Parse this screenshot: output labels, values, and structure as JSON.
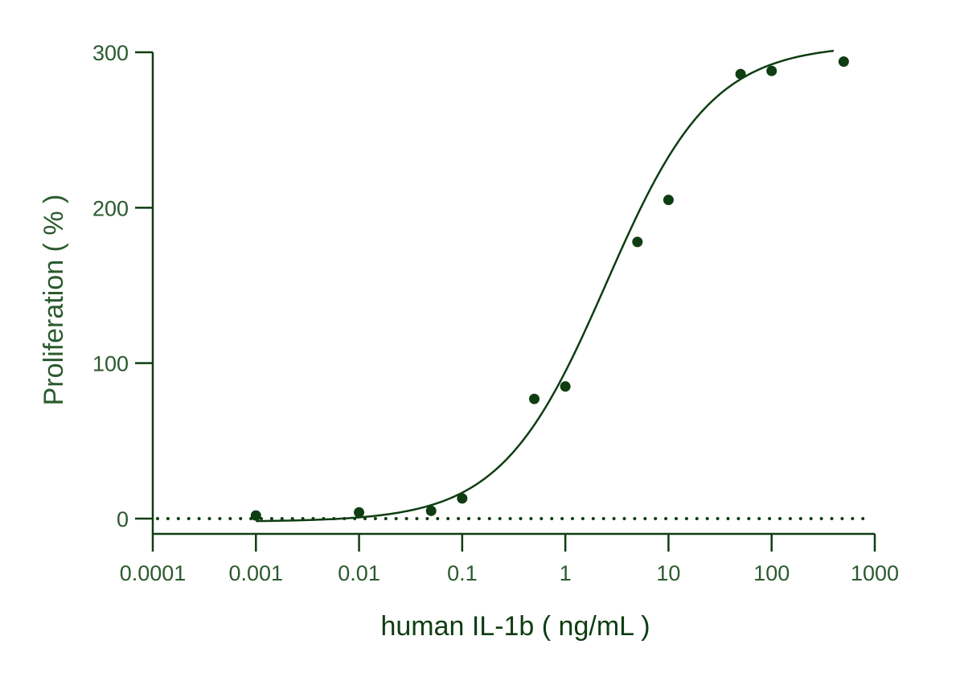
{
  "chart_data": {
    "type": "scatter",
    "xscale": "log",
    "xlabel": "human IL-1b ( ng/mL )",
    "ylabel": "Proliferation ( % )",
    "xlim": [
      0.0001,
      1000
    ],
    "ylim": [
      -10,
      300
    ],
    "xticks": [
      0.0001,
      0.001,
      0.01,
      0.1,
      1,
      10,
      100,
      1000
    ],
    "xtick_labels": [
      "0.0001",
      "0.001",
      "0.01",
      "0.1",
      "1",
      "10",
      "100",
      "1000"
    ],
    "yticks": [
      0,
      100,
      200,
      300
    ],
    "ytick_labels": [
      "0",
      "100",
      "200",
      "300"
    ],
    "grid": false,
    "series": [
      {
        "points": [
          {
            "x": 0.001,
            "y": 2
          },
          {
            "x": 0.01,
            "y": 4
          },
          {
            "x": 0.05,
            "y": 5
          },
          {
            "x": 0.1,
            "y": 13
          },
          {
            "x": 0.5,
            "y": 77
          },
          {
            "x": 1,
            "y": 85
          },
          {
            "x": 5,
            "y": 178
          },
          {
            "x": 10,
            "y": 205
          },
          {
            "x": 50,
            "y": 286
          },
          {
            "x": 100,
            "y": 288
          },
          {
            "x": 500,
            "y": 294
          }
        ]
      }
    ],
    "fit_curve": {
      "type": "four-parameter logistic",
      "bottom": -2,
      "top": 305,
      "ec50": 2.5,
      "hill": 0.85,
      "x_range": [
        0.001,
        400
      ]
    },
    "reference_line": {
      "y": 0,
      "style": "dotted"
    },
    "colors": {
      "ink": "#0f3d12",
      "label": "#2b5a2e"
    }
  }
}
